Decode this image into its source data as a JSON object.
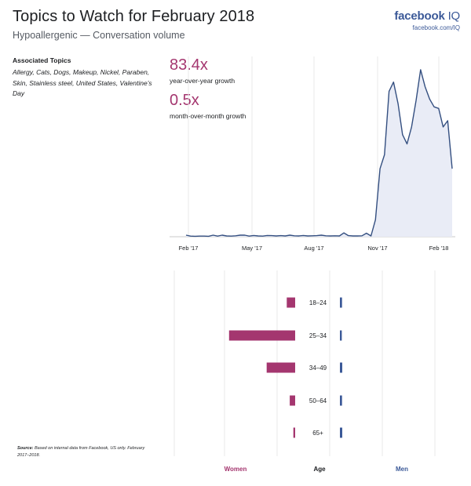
{
  "title": "Topics to Watch for February 2018",
  "subtitle": "Hypoallergenic — Conversation volume",
  "brand": {
    "name": "facebook",
    "suffix": "IQ",
    "url": "facebook.com/IQ",
    "color": "#3b5998"
  },
  "topics": {
    "heading": "Associated Topics",
    "list": "Allergy, Cats, Dogs, Makeup, Nickel, Paraben, Skin, Stainless steel, United States, Valentine’s Day"
  },
  "metrics": {
    "yoy_value": "83.4x",
    "yoy_label": "year-over-year growth",
    "mom_value": "0.5x",
    "mom_label": "month-over-month growth"
  },
  "source": {
    "label": "Source:",
    "text": "Based on internal data from Facebook, US only. February 2017–2018."
  },
  "colors": {
    "women": "#a4366f",
    "men": "#3b5998",
    "line": "#344f80",
    "area": "#e9ecf6",
    "grid": "#e8e8e8"
  },
  "chart_data": [
    {
      "type": "area",
      "xlabel": "",
      "ylabel": "",
      "x_ticks": [
        "Feb '17",
        "May '17",
        "Aug '17",
        "Nov '17",
        "Feb '18"
      ],
      "grid": "vertical",
      "values": [
        1.0,
        0.4,
        0.3,
        0.4,
        0.4,
        0.3,
        1.0,
        0.4,
        1.0,
        0.5,
        0.4,
        0.6,
        1.0,
        1.0,
        0.4,
        0.8,
        0.5,
        0.4,
        0.8,
        0.7,
        0.5,
        0.7,
        0.5,
        1.0,
        0.6,
        0.5,
        0.8,
        0.5,
        0.6,
        0.7,
        1.0,
        0.6,
        0.5,
        0.6,
        0.5,
        2.5,
        0.7,
        0.5,
        0.5,
        0.6,
        2.3,
        0.5,
        11,
        44,
        53,
        94,
        100,
        86,
        66,
        60,
        71,
        88,
        108,
        97,
        89,
        84,
        83,
        71,
        75,
        44
      ],
      "ylim": [
        0,
        110
      ]
    },
    {
      "type": "bar",
      "orientation": "horizontal",
      "center_label": "Age",
      "categories": [
        "18–24",
        "25–34",
        "34–49",
        "50–64",
        "65+"
      ],
      "series": [
        {
          "name": "Women",
          "values": [
            2.8,
            22.0,
            9.5,
            1.8,
            0.6
          ]
        },
        {
          "name": "Men",
          "values": [
            0.9,
            0.8,
            1.0,
            0.9,
            1.0
          ]
        }
      ],
      "xlim": [
        0,
        23
      ]
    }
  ]
}
